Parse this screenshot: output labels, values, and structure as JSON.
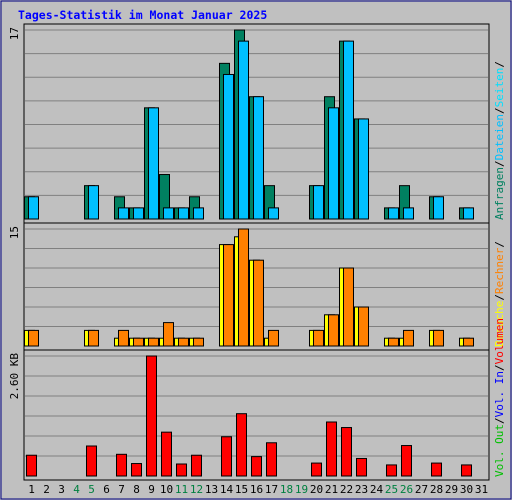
{
  "chart_data": {
    "type": "bar",
    "title": "Tages-Statistik im Monat Januar 2025",
    "categories": [
      "1",
      "2",
      "3",
      "4",
      "5",
      "6",
      "7",
      "8",
      "9",
      "10",
      "11",
      "12",
      "13",
      "14",
      "15",
      "16",
      "17",
      "18",
      "19",
      "20",
      "21",
      "22",
      "23",
      "24",
      "25",
      "26",
      "27",
      "28",
      "29",
      "30",
      "31"
    ],
    "weekend_days": [
      "4",
      "5",
      "11",
      "12",
      "18",
      "19",
      "25",
      "26"
    ],
    "colors": {
      "background": "#c0c0c0",
      "frame": "#000080",
      "title": "#0000ff",
      "grid": "#808080",
      "weekend_label": "#008040",
      "weekday_label": "#000000",
      "anfragen": "#008060",
      "dateien": "#00c0ff",
      "seiten": "#00e0ff",
      "besuche": "#ffff00",
      "rechner": "#ff8000",
      "vol_out": "#00c000",
      "vol_in": "#0000ff",
      "volumen": "#ff0000",
      "slash": "#000000"
    },
    "panels": [
      {
        "name": "hits",
        "max_label": "17",
        "ylim": [
          0,
          17
        ],
        "side_legend": [
          "Anfragen",
          "/",
          "Dateien",
          "/",
          "Seiten",
          "/"
        ],
        "series": [
          {
            "name": "Anfragen",
            "values": [
              2,
              0,
              0,
              0,
              3,
              0,
              2,
              1,
              10,
              4,
              1,
              2,
              0,
              14,
              17,
              11,
              3,
              0,
              0,
              3,
              11,
              16,
              9,
              0,
              1,
              3,
              0,
              2,
              0,
              1,
              0
            ]
          },
          {
            "name": "Dateien",
            "values": [
              2,
              0,
              0,
              0,
              3,
              0,
              1,
              1,
              10,
              1,
              1,
              1,
              0,
              13,
              16,
              11,
              1,
              0,
              0,
              3,
              10,
              16,
              9,
              0,
              1,
              1,
              0,
              2,
              0,
              1,
              0
            ]
          }
        ]
      },
      {
        "name": "visits",
        "max_label": "15",
        "ylim": [
          0,
          15
        ],
        "side_legend": [
          "Besuche",
          "/",
          "Rechner",
          "/"
        ],
        "series": [
          {
            "name": "Besuche",
            "values": [
              2,
              0,
              0,
              0,
              2,
              0,
              1,
              1,
              1,
              1,
              1,
              1,
              0,
              13,
              14,
              11,
              1,
              0,
              0,
              2,
              4,
              10,
              5,
              0,
              1,
              1,
              0,
              2,
              0,
              1,
              0
            ]
          },
          {
            "name": "Rechner",
            "values": [
              2,
              0,
              0,
              0,
              2,
              0,
              2,
              1,
              1,
              3,
              1,
              1,
              0,
              13,
              15,
              11,
              2,
              0,
              0,
              2,
              4,
              10,
              5,
              0,
              1,
              2,
              0,
              2,
              0,
              1,
              0
            ]
          }
        ]
      },
      {
        "name": "volume",
        "max_label": "2.60 KB",
        "ylim": [
          0,
          2.6
        ],
        "side_legend": [
          "Vol. Out",
          "/",
          "Vol. In",
          "/",
          "Volumen"
        ],
        "series": [
          {
            "name": "Volumen",
            "values": [
              0.45,
              0,
              0,
              0,
              0.65,
              0,
              0.47,
              0.27,
              2.6,
              0.95,
              0.26,
              0.45,
              0,
              0.85,
              1.35,
              0.42,
              0.72,
              0,
              0,
              0.28,
              1.17,
              1.05,
              0.38,
              0,
              0.24,
              0.66,
              0,
              0.28,
              0,
              0.24,
              0
            ]
          }
        ]
      }
    ]
  }
}
